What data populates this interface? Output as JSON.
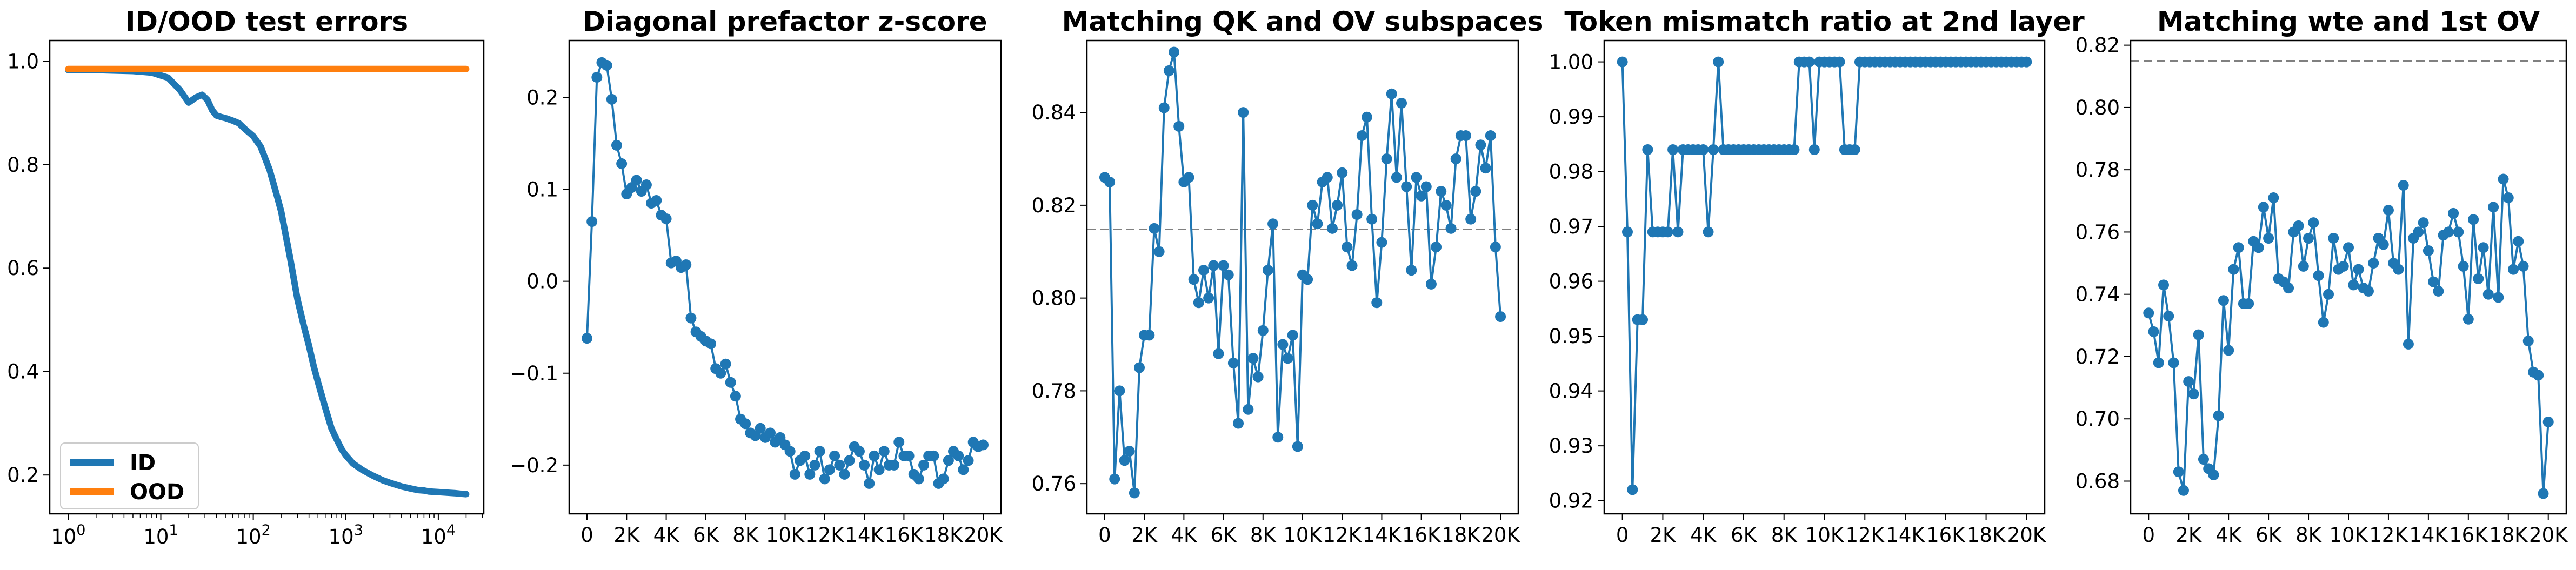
{
  "chart_data": [
    {
      "type": "line",
      "title": "ID/OOD test errors",
      "xlabel": "",
      "ylabel": "",
      "xscale": "log",
      "xlim": [
        0.63,
        31000
      ],
      "ylim": [
        0.125,
        1.04
      ],
      "xtick_labels": [
        {
          "x": 1,
          "base": "10",
          "exp": "0"
        },
        {
          "x": 10,
          "base": "10",
          "exp": "1"
        },
        {
          "x": 100,
          "base": "10",
          "exp": "2"
        },
        {
          "x": 1000,
          "base": "10",
          "exp": "3"
        },
        {
          "x": 10000,
          "base": "10",
          "exp": "4"
        }
      ],
      "yticks": [
        0.2,
        0.4,
        0.6,
        0.8,
        1.0
      ],
      "ytick_labels": [
        "0.2",
        "0.4",
        "0.6",
        "0.8",
        "1.0"
      ],
      "legend": {
        "placement": "lower-left",
        "entries": [
          "ID",
          "OOD"
        ]
      },
      "series": [
        {
          "name": "ID",
          "color": "#1f77b4",
          "x": [
            1,
            2,
            3,
            5,
            8,
            12,
            16,
            20,
            24,
            28,
            32,
            36,
            40,
            45,
            50,
            60,
            70,
            80,
            100,
            120,
            150,
            180,
            200,
            250,
            300,
            350,
            400,
            450,
            500,
            600,
            700,
            800,
            900,
            1000,
            1200,
            1500,
            2000,
            2500,
            3000,
            4000,
            5000,
            6000,
            7000,
            8000,
            10000,
            12000,
            15000,
            17000,
            20000
          ],
          "y": [
            0.983,
            0.983,
            0.982,
            0.981,
            0.978,
            0.968,
            0.945,
            0.92,
            0.93,
            0.935,
            0.925,
            0.905,
            0.895,
            0.892,
            0.89,
            0.885,
            0.88,
            0.87,
            0.855,
            0.835,
            0.79,
            0.74,
            0.71,
            0.62,
            0.54,
            0.49,
            0.45,
            0.41,
            0.38,
            0.33,
            0.29,
            0.268,
            0.25,
            0.238,
            0.222,
            0.21,
            0.198,
            0.19,
            0.185,
            0.178,
            0.174,
            0.171,
            0.17,
            0.168,
            0.167,
            0.166,
            0.165,
            0.164,
            0.163
          ]
        },
        {
          "name": "OOD",
          "color": "#ff7f0e",
          "x": [
            1,
            3,
            10,
            30,
            100,
            300,
            1000,
            3000,
            10000,
            20000
          ],
          "y": [
            0.985,
            0.985,
            0.985,
            0.985,
            0.985,
            0.985,
            0.985,
            0.985,
            0.985,
            0.985
          ]
        }
      ]
    },
    {
      "type": "line",
      "title": "Diagonal prefactor z-score",
      "xlabel": "",
      "ylabel": "",
      "xlim": [
        -900,
        20900
      ],
      "ylim": [
        -0.253,
        0.262
      ],
      "xticks": [
        0,
        2000,
        4000,
        6000,
        8000,
        10000,
        12000,
        14000,
        16000,
        18000,
        20000
      ],
      "xtick_labels": [
        "0",
        "2K",
        "4K",
        "6K",
        "8K",
        "10K",
        "12K",
        "14K",
        "16K",
        "18K",
        "20K"
      ],
      "yticks": [
        -0.2,
        -0.1,
        0.0,
        0.1,
        0.2
      ],
      "ytick_labels": [
        "−0.2",
        "−0.1",
        "0.0",
        "0.1",
        "0.2"
      ],
      "series": [
        {
          "color": "#1f77b4",
          "x": [
            0,
            250,
            500,
            750,
            1000,
            1250,
            1500,
            1750,
            2000,
            2250,
            2500,
            2750,
            3000,
            3250,
            3500,
            3750,
            4000,
            4250,
            4500,
            4750,
            5000,
            5250,
            5500,
            5750,
            6000,
            6250,
            6500,
            6750,
            7000,
            7250,
            7500,
            7750,
            8000,
            8250,
            8500,
            8750,
            9000,
            9250,
            9500,
            9750,
            10000,
            10250,
            10500,
            10750,
            11000,
            11250,
            11500,
            11750,
            12000,
            12250,
            12500,
            12750,
            13000,
            13250,
            13500,
            13750,
            14000,
            14250,
            14500,
            14750,
            15000,
            15250,
            15500,
            15750,
            16000,
            16250,
            16500,
            16750,
            17000,
            17250,
            17500,
            17750,
            18000,
            18250,
            18500,
            18750,
            19000,
            19250,
            19500,
            19750,
            20000
          ],
          "y": [
            -0.062,
            0.065,
            0.222,
            0.238,
            0.235,
            0.198,
            0.148,
            0.128,
            0.095,
            0.102,
            0.11,
            0.098,
            0.105,
            0.085,
            0.088,
            0.072,
            0.068,
            0.02,
            0.022,
            0.015,
            0.018,
            -0.04,
            -0.055,
            -0.06,
            -0.065,
            -0.068,
            -0.095,
            -0.1,
            -0.09,
            -0.11,
            -0.125,
            -0.15,
            -0.155,
            -0.165,
            -0.168,
            -0.16,
            -0.17,
            -0.165,
            -0.175,
            -0.17,
            -0.178,
            -0.185,
            -0.21,
            -0.195,
            -0.19,
            -0.21,
            -0.2,
            -0.185,
            -0.215,
            -0.205,
            -0.19,
            -0.2,
            -0.21,
            -0.195,
            -0.18,
            -0.185,
            -0.2,
            -0.22,
            -0.19,
            -0.205,
            -0.185,
            -0.2,
            -0.2,
            -0.175,
            -0.19,
            -0.19,
            -0.21,
            -0.215,
            -0.2,
            -0.19,
            -0.19,
            -0.22,
            -0.215,
            -0.195,
            -0.185,
            -0.19,
            -0.205,
            -0.195,
            -0.175,
            -0.18,
            -0.178
          ]
        }
      ]
    },
    {
      "type": "line",
      "title": "Matching QK and OV subspaces",
      "xlabel": "",
      "ylabel": "",
      "xlim": [
        -900,
        20900
      ],
      "ylim": [
        0.7535,
        0.8555
      ],
      "xticks": [
        0,
        2000,
        4000,
        6000,
        8000,
        10000,
        12000,
        14000,
        16000,
        18000,
        20000
      ],
      "xtick_labels": [
        "0",
        "2K",
        "4K",
        "6K",
        "8K",
        "10K",
        "12K",
        "14K",
        "16K",
        "18K",
        "20K"
      ],
      "yticks": [
        0.76,
        0.78,
        0.8,
        0.82,
        0.84
      ],
      "ytick_labels": [
        "0.76",
        "0.78",
        "0.80",
        "0.82",
        "0.84"
      ],
      "reference_line": {
        "y": 0.8148,
        "style": "dashed",
        "color": "#808080"
      },
      "series": [
        {
          "color": "#1f77b4",
          "x": [
            0,
            250,
            500,
            750,
            1000,
            1250,
            1500,
            1750,
            2000,
            2250,
            2500,
            2750,
            3000,
            3250,
            3500,
            3750,
            4000,
            4250,
            4500,
            4750,
            5000,
            5250,
            5500,
            5750,
            6000,
            6250,
            6500,
            6750,
            7000,
            7250,
            7500,
            7750,
            8000,
            8250,
            8500,
            8750,
            9000,
            9250,
            9500,
            9750,
            10000,
            10250,
            10500,
            10750,
            11000,
            11250,
            11500,
            11750,
            12000,
            12250,
            12500,
            12750,
            13000,
            13250,
            13500,
            13750,
            14000,
            14250,
            14500,
            14750,
            15000,
            15250,
            15500,
            15750,
            16000,
            16250,
            16500,
            16750,
            17000,
            17250,
            17500,
            17750,
            18000,
            18250,
            18500,
            18750,
            19000,
            19250,
            19500,
            19750,
            20000
          ],
          "y": [
            0.826,
            0.825,
            0.761,
            0.78,
            0.765,
            0.767,
            0.758,
            0.785,
            0.792,
            0.792,
            0.815,
            0.81,
            0.841,
            0.849,
            0.853,
            0.837,
            0.825,
            0.826,
            0.804,
            0.799,
            0.806,
            0.8,
            0.807,
            0.788,
            0.807,
            0.805,
            0.786,
            0.773,
            0.84,
            0.776,
            0.787,
            0.783,
            0.793,
            0.806,
            0.816,
            0.77,
            0.79,
            0.787,
            0.792,
            0.768,
            0.805,
            0.804,
            0.82,
            0.816,
            0.825,
            0.826,
            0.815,
            0.82,
            0.827,
            0.811,
            0.807,
            0.818,
            0.835,
            0.839,
            0.817,
            0.799,
            0.812,
            0.83,
            0.844,
            0.826,
            0.842,
            0.824,
            0.806,
            0.826,
            0.822,
            0.824,
            0.803,
            0.811,
            0.823,
            0.82,
            0.815,
            0.83,
            0.835,
            0.835,
            0.817,
            0.823,
            0.833,
            0.828,
            0.835,
            0.811,
            0.796
          ]
        }
      ]
    },
    {
      "type": "line",
      "title": "Token mismatch ratio at 2nd layer",
      "xlabel": "",
      "ylabel": "",
      "xlim": [
        -900,
        20900
      ],
      "ylim": [
        0.9176,
        1.0039
      ],
      "xticks": [
        0,
        2000,
        4000,
        6000,
        8000,
        10000,
        12000,
        14000,
        16000,
        18000,
        20000
      ],
      "xtick_labels": [
        "0",
        "2K",
        "4K",
        "6K",
        "8K",
        "10K",
        "12K",
        "14K",
        "16K",
        "18K",
        "20K"
      ],
      "yticks": [
        0.92,
        0.93,
        0.94,
        0.95,
        0.96,
        0.97,
        0.98,
        0.99,
        1.0
      ],
      "ytick_labels": [
        "0.92",
        "0.93",
        "0.94",
        "0.95",
        "0.96",
        "0.97",
        "0.98",
        "0.99",
        "1.00"
      ],
      "series": [
        {
          "color": "#1f77b4",
          "x": [
            0,
            250,
            500,
            750,
            1000,
            1250,
            1500,
            1750,
            2000,
            2250,
            2500,
            2750,
            3000,
            3250,
            3500,
            3750,
            4000,
            4250,
            4500,
            4750,
            5000,
            5250,
            5500,
            5750,
            6000,
            6250,
            6500,
            6750,
            7000,
            7250,
            7500,
            7750,
            8000,
            8250,
            8500,
            8750,
            9000,
            9250,
            9500,
            9750,
            10000,
            10250,
            10500,
            10750,
            11000,
            11250,
            11500,
            11750,
            12000,
            12250,
            12500,
            12750,
            13000,
            13250,
            13500,
            13750,
            14000,
            14250,
            14500,
            14750,
            15000,
            15250,
            15500,
            15750,
            16000,
            16250,
            16500,
            16750,
            17000,
            17250,
            17500,
            17750,
            18000,
            18250,
            18500,
            18750,
            19000,
            19250,
            19500,
            19750,
            20000
          ],
          "y": [
            1.0,
            0.969,
            0.922,
            0.953,
            0.953,
            0.984,
            0.969,
            0.969,
            0.969,
            0.969,
            0.984,
            0.969,
            0.984,
            0.984,
            0.984,
            0.984,
            0.984,
            0.969,
            0.984,
            1.0,
            0.984,
            0.984,
            0.984,
            0.984,
            0.984,
            0.984,
            0.984,
            0.984,
            0.984,
            0.984,
            0.984,
            0.984,
            0.984,
            0.984,
            0.984,
            1.0,
            1.0,
            1.0,
            0.984,
            1.0,
            1.0,
            1.0,
            1.0,
            1.0,
            0.984,
            0.984,
            0.984,
            1.0,
            1.0,
            1.0,
            1.0,
            1.0,
            1.0,
            1.0,
            1.0,
            1.0,
            1.0,
            1.0,
            1.0,
            1.0,
            1.0,
            1.0,
            1.0,
            1.0,
            1.0,
            1.0,
            1.0,
            1.0,
            1.0,
            1.0,
            1.0,
            1.0,
            1.0,
            1.0,
            1.0,
            1.0,
            1.0,
            1.0,
            1.0,
            1.0,
            1.0
          ]
        }
      ]
    },
    {
      "type": "line",
      "title": "Matching wte and 1st OV",
      "xlabel": "",
      "ylabel": "",
      "xlim": [
        -900,
        20900
      ],
      "ylim": [
        0.6695,
        0.8215
      ],
      "xticks": [
        0,
        2000,
        4000,
        6000,
        8000,
        10000,
        12000,
        14000,
        16000,
        18000,
        20000
      ],
      "xtick_labels": [
        "0",
        "2K",
        "4K",
        "6K",
        "8K",
        "10K",
        "12K",
        "14K",
        "16K",
        "18K",
        "20K"
      ],
      "yticks": [
        0.68,
        0.7,
        0.72,
        0.74,
        0.76,
        0.78,
        0.8,
        0.82
      ],
      "ytick_labels": [
        "0.68",
        "0.70",
        "0.72",
        "0.74",
        "0.76",
        "0.78",
        "0.80",
        "0.82"
      ],
      "reference_line": {
        "y": 0.815,
        "style": "dashed",
        "color": "#808080"
      },
      "series": [
        {
          "color": "#1f77b4",
          "x": [
            0,
            250,
            500,
            750,
            1000,
            1250,
            1500,
            1750,
            2000,
            2250,
            2500,
            2750,
            3000,
            3250,
            3500,
            3750,
            4000,
            4250,
            4500,
            4750,
            5000,
            5250,
            5500,
            5750,
            6000,
            6250,
            6500,
            6750,
            7000,
            7250,
            7500,
            7750,
            8000,
            8250,
            8500,
            8750,
            9000,
            9250,
            9500,
            9750,
            10000,
            10250,
            10500,
            10750,
            11000,
            11250,
            11500,
            11750,
            12000,
            12250,
            12500,
            12750,
            13000,
            13250,
            13500,
            13750,
            14000,
            14250,
            14500,
            14750,
            15000,
            15250,
            15500,
            15750,
            16000,
            16250,
            16500,
            16750,
            17000,
            17250,
            17500,
            17750,
            18000,
            18250,
            18500,
            18750,
            19000,
            19250,
            19500,
            19750,
            20000
          ],
          "y": [
            0.734,
            0.728,
            0.718,
            0.743,
            0.733,
            0.718,
            0.683,
            0.677,
            0.712,
            0.708,
            0.727,
            0.687,
            0.684,
            0.682,
            0.701,
            0.738,
            0.722,
            0.748,
            0.755,
            0.737,
            0.737,
            0.757,
            0.755,
            0.768,
            0.758,
            0.771,
            0.745,
            0.744,
            0.742,
            0.76,
            0.762,
            0.749,
            0.758,
            0.763,
            0.746,
            0.731,
            0.74,
            0.758,
            0.748,
            0.749,
            0.755,
            0.743,
            0.748,
            0.742,
            0.741,
            0.75,
            0.758,
            0.756,
            0.767,
            0.75,
            0.748,
            0.775,
            0.724,
            0.758,
            0.76,
            0.763,
            0.754,
            0.744,
            0.741,
            0.759,
            0.76,
            0.766,
            0.76,
            0.749,
            0.732,
            0.764,
            0.745,
            0.755,
            0.74,
            0.768,
            0.739,
            0.777,
            0.771,
            0.748,
            0.757,
            0.749,
            0.725,
            0.715,
            0.714,
            0.676,
            0.699
          ]
        }
      ]
    }
  ]
}
